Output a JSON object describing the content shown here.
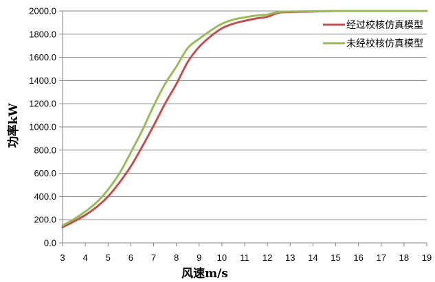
{
  "chart_data": {
    "type": "line",
    "xlabel": "风速m/s",
    "ylabel": "功率kW",
    "xlim": [
      3,
      19
    ],
    "ylim": [
      0,
      2000
    ],
    "x_ticks": [
      3,
      4,
      5,
      6,
      7,
      8,
      9,
      10,
      11,
      12,
      13,
      14,
      15,
      16,
      17,
      18,
      19
    ],
    "x_tick_labels": [
      "3",
      "4",
      "5",
      "6",
      "7",
      "8",
      "9",
      "10",
      "11",
      "12",
      "13",
      "14",
      "15",
      "16",
      "17",
      "18",
      "19"
    ],
    "y_ticks": [
      0,
      200,
      400,
      600,
      800,
      1000,
      1200,
      1400,
      1600,
      1800,
      2000
    ],
    "y_tick_labels": [
      "0.0",
      "200.0",
      "400.0",
      "600.0",
      "800.0",
      "1000.0",
      "1200.0",
      "1400.0",
      "1600.0",
      "1800.0",
      "2000.0"
    ],
    "grid": "horizontal",
    "legend_position": "top-right",
    "series": [
      {
        "name": "经过校核仿真模型",
        "color": "#c0504d",
        "x": [
          3,
          3.5,
          4,
          4.5,
          5,
          5.5,
          6,
          6.5,
          7,
          7.5,
          8,
          8.5,
          9,
          9.5,
          10,
          10.5,
          11,
          11.5,
          12,
          12.5,
          13,
          13.5,
          14,
          15,
          16,
          17,
          18,
          19
        ],
        "y": [
          135,
          185,
          240,
          310,
          400,
          520,
          660,
          830,
          1010,
          1200,
          1370,
          1560,
          1690,
          1780,
          1850,
          1890,
          1915,
          1935,
          1950,
          1985,
          1990,
          1993,
          1995,
          2000,
          2000,
          2000,
          2000,
          2000
        ]
      },
      {
        "name": "未经校核仿真模型",
        "color": "#9bbb59",
        "x": [
          3,
          3.5,
          4,
          4.5,
          5,
          5.5,
          6,
          6.5,
          7,
          7.5,
          8,
          8.5,
          9,
          9.5,
          10,
          10.5,
          11,
          11.5,
          12,
          12.5,
          13,
          13.5,
          14,
          15,
          16,
          17,
          18,
          19
        ],
        "y": [
          150,
          205,
          270,
          350,
          460,
          600,
          780,
          970,
          1180,
          1370,
          1520,
          1680,
          1760,
          1830,
          1890,
          1925,
          1945,
          1960,
          1970,
          1992,
          1995,
          1997,
          1998,
          2000,
          2000,
          2000,
          2000,
          2000
        ]
      }
    ]
  }
}
